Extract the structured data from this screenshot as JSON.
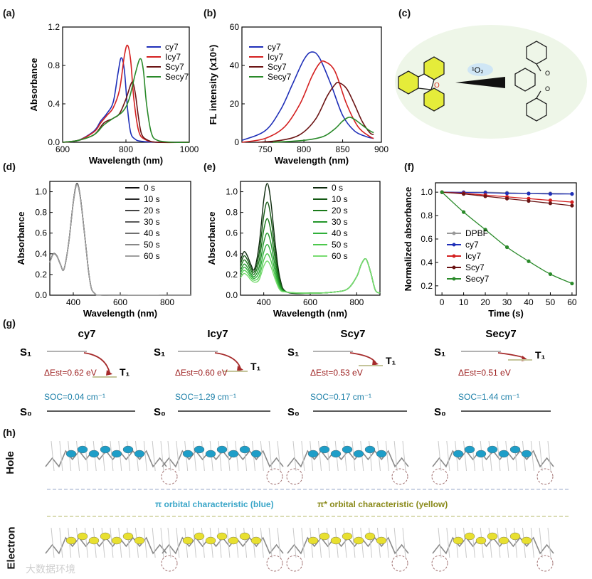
{
  "panels": {
    "a": {
      "label": "(a)",
      "xlabel": "Wavelength (nm)",
      "ylabel": "Absorbance",
      "xticks": [
        "600",
        "800",
        "1000"
      ],
      "yticks": [
        "0.0",
        "0.4",
        "0.8",
        "1.2"
      ]
    },
    "b": {
      "label": "(b)",
      "xlabel": "Wavelength (nm)",
      "ylabel": "FL intensity (x10⁵)",
      "xticks": [
        "750",
        "800",
        "850",
        "900"
      ],
      "yticks": [
        "0",
        "20",
        "40",
        "60"
      ]
    },
    "c": {
      "label": "(c)",
      "reagent": "¹O₂"
    },
    "d": {
      "label": "(d)",
      "xlabel": "Wavelength (nm)",
      "ylabel": "Absorbance",
      "xticks": [
        "400",
        "600",
        "800"
      ],
      "yticks": [
        "0.0",
        "0.2",
        "0.4",
        "0.6",
        "0.8",
        "1.0"
      ]
    },
    "e": {
      "label": "(e)",
      "xlabel": "Wavelength (nm)",
      "ylabel": "Absorbance",
      "xticks": [
        "400",
        "600",
        "800"
      ],
      "yticks": [
        "0.0",
        "0.2",
        "0.4",
        "0.6",
        "0.8",
        "1.0"
      ]
    },
    "f": {
      "label": "(f)",
      "xlabel": "Time (s)",
      "ylabel": "Normalized absorbance",
      "xticks": [
        "0",
        "10",
        "20",
        "30",
        "40",
        "50",
        "60"
      ],
      "yticks": [
        "0.2",
        "0.4",
        "0.6",
        "0.8",
        "1.0"
      ]
    },
    "g": {
      "label": "(g)"
    },
    "h": {
      "label": "(h)"
    }
  },
  "legends": {
    "ab": [
      "cy7",
      "Icy7",
      "Scy7",
      "Secy7"
    ],
    "time": [
      "0 s",
      "10 s",
      "20 s",
      "30 s",
      "40 s",
      "50 s",
      "60 s"
    ],
    "f": [
      "DPBF",
      "cy7",
      "Icy7",
      "Scy7",
      "Secy7"
    ]
  },
  "energy": {
    "s1": "S₁",
    "s0": "S₀",
    "t1": "T₁",
    "items": [
      {
        "name": "cy7",
        "dest": "ΔEst=0.62 eV",
        "soc": "SOC=0.04 cm⁻¹"
      },
      {
        "name": "Icy7",
        "dest": "ΔEst=0.60 eV",
        "soc": "SOC=1.29 cm⁻¹"
      },
      {
        "name": "Scy7",
        "dest": "ΔEst=0.53 eV",
        "soc": "SOC=0.17 cm⁻¹"
      },
      {
        "name": "Secy7",
        "dest": "ΔEst=0.51 eV",
        "soc": "SOC=1.44 cm⁻¹"
      }
    ]
  },
  "orbitals": {
    "hole": "Hole",
    "electron": "Electron",
    "pi_note": "π orbital characteristic (blue)",
    "pistar_note": "π* orbital characteristic (yellow)"
  },
  "watermark": "大数据环境",
  "colors": {
    "cy7": "#1f2fb8",
    "Icy7": "#d42020",
    "Scy7": "#6b1414",
    "Secy7": "#2a8a2a",
    "DPBF": "#999999"
  },
  "chart_data": [
    {
      "id": "a",
      "type": "line",
      "title": "",
      "xlabel": "Wavelength (nm)",
      "ylabel": "Absorbance",
      "xlim": [
        600,
        1000
      ],
      "ylim": [
        0,
        1.2
      ],
      "series": [
        {
          "name": "cy7",
          "x": [
            600,
            650,
            700,
            720,
            740,
            760,
            775,
            785,
            795,
            805,
            815,
            830,
            850,
            900,
            1000
          ],
          "y": [
            0.0,
            0.02,
            0.12,
            0.22,
            0.3,
            0.42,
            0.72,
            0.88,
            0.75,
            0.35,
            0.1,
            0.03,
            0.01,
            0.0,
            0.0
          ]
        },
        {
          "name": "Icy7",
          "x": [
            600,
            650,
            700,
            720,
            740,
            760,
            780,
            795,
            805,
            815,
            825,
            840,
            860,
            900,
            1000
          ],
          "y": [
            0.0,
            0.02,
            0.11,
            0.2,
            0.28,
            0.36,
            0.55,
            0.9,
            1.01,
            0.85,
            0.45,
            0.12,
            0.03,
            0.0,
            0.0
          ]
        },
        {
          "name": "Scy7",
          "x": [
            600,
            650,
            700,
            730,
            760,
            780,
            800,
            815,
            822,
            830,
            840,
            850,
            870,
            900,
            1000
          ],
          "y": [
            0.0,
            0.02,
            0.08,
            0.2,
            0.25,
            0.3,
            0.45,
            0.6,
            0.62,
            0.5,
            0.25,
            0.08,
            0.02,
            0.0,
            0.0
          ]
        },
        {
          "name": "Secy7",
          "x": [
            600,
            650,
            700,
            730,
            760,
            790,
            810,
            830,
            845,
            855,
            865,
            880,
            900,
            950,
            1000
          ],
          "y": [
            0.0,
            0.02,
            0.08,
            0.18,
            0.25,
            0.32,
            0.45,
            0.72,
            0.87,
            0.75,
            0.4,
            0.1,
            0.02,
            0.0,
            0.0
          ]
        }
      ]
    },
    {
      "id": "b",
      "type": "line",
      "title": "",
      "xlabel": "Wavelength (nm)",
      "ylabel": "FL intensity (x10⁵)",
      "xlim": [
        720,
        900
      ],
      "ylim": [
        0,
        60
      ],
      "series": [
        {
          "name": "cy7",
          "x": [
            720,
            750,
            770,
            785,
            800,
            810,
            820,
            835,
            850,
            865,
            880,
            890
          ],
          "y": [
            1,
            6,
            17,
            30,
            43,
            47,
            44,
            30,
            14,
            6,
            3,
            2
          ]
        },
        {
          "name": "Icy7",
          "x": [
            720,
            750,
            775,
            795,
            810,
            820,
            827,
            840,
            855,
            870,
            885,
            890
          ],
          "y": [
            0,
            2,
            8,
            20,
            34,
            41,
            42,
            37,
            20,
            8,
            3,
            2
          ]
        },
        {
          "name": "Scy7",
          "x": [
            740,
            770,
            795,
            815,
            830,
            840,
            845,
            855,
            865,
            875,
            885,
            890
          ],
          "y": [
            0,
            1,
            4,
            12,
            24,
            30,
            31,
            28,
            20,
            11,
            5,
            4
          ]
        },
        {
          "name": "Secy7",
          "x": [
            760,
            800,
            825,
            840,
            850,
            858,
            865,
            875,
            885,
            890
          ],
          "y": [
            0,
            1,
            3,
            7,
            11,
            13,
            12,
            9,
            6,
            5
          ]
        }
      ]
    },
    {
      "id": "d",
      "type": "line",
      "title": "",
      "xlabel": "Wavelength (nm)",
      "ylabel": "Absorbance",
      "xlim": [
        300,
        900
      ],
      "ylim": [
        0,
        1.1
      ],
      "series": [
        {
          "name": "0 s",
          "x": [
            300,
            315,
            330,
            345,
            360,
            380,
            400,
            415,
            430,
            450,
            470,
            490,
            550,
            900
          ],
          "y": [
            0.32,
            0.4,
            0.38,
            0.3,
            0.25,
            0.5,
            0.9,
            1.08,
            0.95,
            0.55,
            0.15,
            0.02,
            0.0,
            0.0
          ]
        }
      ]
    },
    {
      "id": "e",
      "type": "line",
      "title": "",
      "xlabel": "Wavelength (nm)",
      "ylabel": "Absorbance",
      "xlim": [
        300,
        900
      ],
      "ylim": [
        0,
        1.1
      ],
      "series": [
        {
          "name": "0 s",
          "peak": 1.08,
          "uv": 0.42
        },
        {
          "name": "10 s",
          "peak": 0.9,
          "uv": 0.38
        },
        {
          "name": "20 s",
          "peak": 0.74,
          "uv": 0.34
        },
        {
          "name": "30 s",
          "peak": 0.6,
          "uv": 0.3
        },
        {
          "name": "40 s",
          "peak": 0.49,
          "uv": 0.27
        },
        {
          "name": "50 s",
          "peak": 0.4,
          "uv": 0.24
        },
        {
          "name": "60 s",
          "peak": 0.33,
          "uv": 0.21
        }
      ],
      "nir_peak": {
        "x": 840,
        "y": 0.35
      }
    },
    {
      "id": "f",
      "type": "line",
      "title": "",
      "xlabel": "Time (s)",
      "ylabel": "Normalized absorbance",
      "xlim": [
        -3,
        62
      ],
      "ylim": [
        0.12,
        1.08
      ],
      "series": [
        {
          "name": "DPBF",
          "x": [
            0,
            10,
            20,
            30,
            40,
            50,
            60
          ],
          "y": [
            1.0,
            1.0,
            1.0,
            0.995,
            0.99,
            0.99,
            0.985
          ]
        },
        {
          "name": "cy7",
          "x": [
            0,
            10,
            20,
            30,
            40,
            50,
            60
          ],
          "y": [
            1.0,
            0.998,
            0.995,
            0.99,
            0.988,
            0.985,
            0.985
          ]
        },
        {
          "name": "Icy7",
          "x": [
            0,
            10,
            20,
            30,
            40,
            50,
            60
          ],
          "y": [
            1.0,
            0.99,
            0.975,
            0.96,
            0.945,
            0.93,
            0.915
          ]
        },
        {
          "name": "Scy7",
          "x": [
            0,
            10,
            20,
            30,
            40,
            50,
            60
          ],
          "y": [
            1.0,
            0.985,
            0.965,
            0.945,
            0.925,
            0.905,
            0.885
          ]
        },
        {
          "name": "Secy7",
          "x": [
            0,
            10,
            20,
            30,
            40,
            50,
            60
          ],
          "y": [
            1.0,
            0.83,
            0.68,
            0.53,
            0.41,
            0.3,
            0.22
          ]
        }
      ]
    }
  ]
}
